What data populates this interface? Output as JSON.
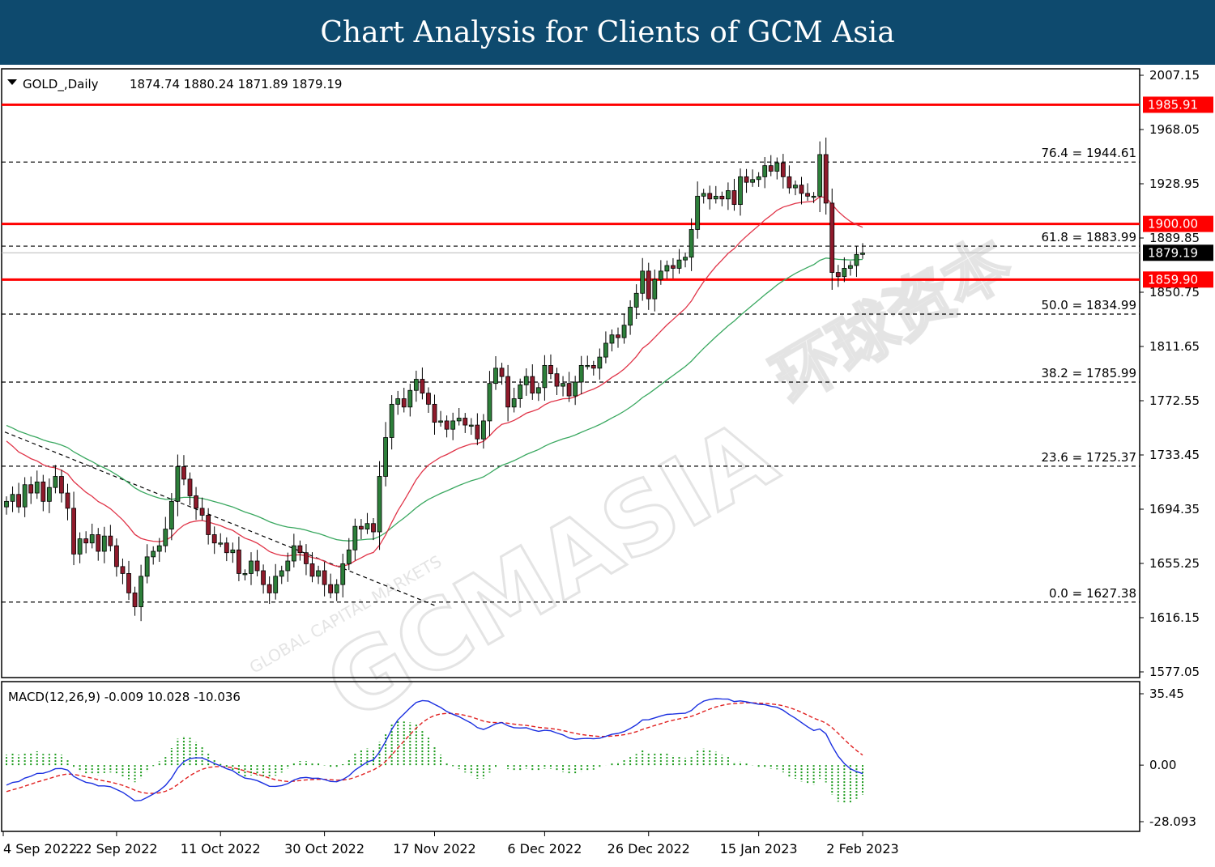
{
  "banner": {
    "title": "Chart Analysis for Clients of GCM Asia"
  },
  "header": {
    "symbol": "GOLD_,Daily",
    "ohlc": "1874.74 1880.24 1871.89 1879.19"
  },
  "watermark": {
    "brand": "GCMASIA",
    "chinese": "环球资本",
    "sub": "GLOBAL CAPITAL MARKETS"
  },
  "colors": {
    "bull": "#2d7f3a",
    "bear": "#8f1a2b",
    "ma_fast": "#e03448",
    "ma_slow": "#3aa860",
    "macd_line": "#1a2fe0",
    "signal_line": "#e02020",
    "histogram": "#1a9a1a",
    "level": "#ff0000"
  },
  "chart_data": [
    {
      "type": "candlestick",
      "y_axis": {
        "range": [
          1577.05,
          2007.15
        ],
        "ticks": [
          "2007.15",
          "1968.05",
          "1928.95",
          "1889.85",
          "1850.75",
          "1811.65",
          "1772.55",
          "1733.45",
          "1694.35",
          "1655.25",
          "1616.15",
          "1577.05"
        ]
      },
      "x_axis": {
        "ticks": [
          "4 Sep 2022",
          "22 Sep 2022",
          "11 Oct 2022",
          "30 Oct 2022",
          "17 Nov 2022",
          "6 Dec 2022",
          "26 Dec 2022",
          "15 Jan 2023",
          "2 Feb 2023"
        ]
      },
      "current_price": "1879.19",
      "levels": [
        {
          "label": "1985.91",
          "value": 1985.91
        },
        {
          "label": "1900.00",
          "value": 1900.0
        },
        {
          "label": "1859.90",
          "value": 1859.9
        }
      ],
      "fibonacci": [
        {
          "label": "76.4 = 1944.61",
          "value": 1944.61
        },
        {
          "label": "61.8 = 1883.99",
          "value": 1883.99
        },
        {
          "label": "50.0 = 1834.99",
          "value": 1834.99
        },
        {
          "label": "38.2 = 1785.99",
          "value": 1785.99
        },
        {
          "label": "23.6 = 1725.37",
          "value": 1725.37
        },
        {
          "label": "0.0 = 1627.38",
          "value": 1627.38
        }
      ],
      "closes": [
        1700,
        1705,
        1696,
        1712,
        1706,
        1714,
        1700,
        1710,
        1718,
        1706,
        1695,
        1662,
        1673,
        1670,
        1676,
        1664,
        1675,
        1668,
        1653,
        1648,
        1634,
        1624,
        1646,
        1660,
        1664,
        1668,
        1680,
        1700,
        1725,
        1716,
        1704,
        1695,
        1690,
        1676,
        1670,
        1670,
        1663,
        1665,
        1648,
        1648,
        1657,
        1650,
        1640,
        1634,
        1646,
        1650,
        1657,
        1668,
        1663,
        1655,
        1646,
        1650,
        1640,
        1634,
        1640,
        1655,
        1665,
        1682,
        1680,
        1684,
        1678,
        1718,
        1746,
        1770,
        1774,
        1768,
        1780,
        1788,
        1778,
        1770,
        1757,
        1758,
        1752,
        1758,
        1760,
        1755,
        1755,
        1745,
        1758,
        1785,
        1796,
        1790,
        1768,
        1774,
        1784,
        1790,
        1778,
        1782,
        1798,
        1792,
        1783,
        1785,
        1776,
        1786,
        1798,
        1798,
        1796,
        1804,
        1814,
        1820,
        1818,
        1827,
        1840,
        1850,
        1866,
        1846,
        1860,
        1866,
        1870,
        1868,
        1874,
        1876,
        1896,
        1920,
        1922,
        1918,
        1920,
        1918,
        1924,
        1914,
        1934,
        1930,
        1932,
        1934,
        1942,
        1938,
        1944,
        1934,
        1926,
        1928,
        1922,
        1920,
        1920,
        1950,
        1915,
        1865,
        1862,
        1868,
        1870,
        1878,
        1879
      ],
      "ma_fast_start": 1748,
      "ma_slow_start": 1757,
      "trendline": {
        "from": 1750,
        "to": 1625
      }
    },
    {
      "type": "macd",
      "label": "MACD(12,26,9) -0.009 10.028 -10.036",
      "y_axis": {
        "range": [
          -28.093,
          35.45
        ],
        "ticks": [
          "35.45",
          "0.00",
          "-28.093"
        ]
      }
    }
  ]
}
